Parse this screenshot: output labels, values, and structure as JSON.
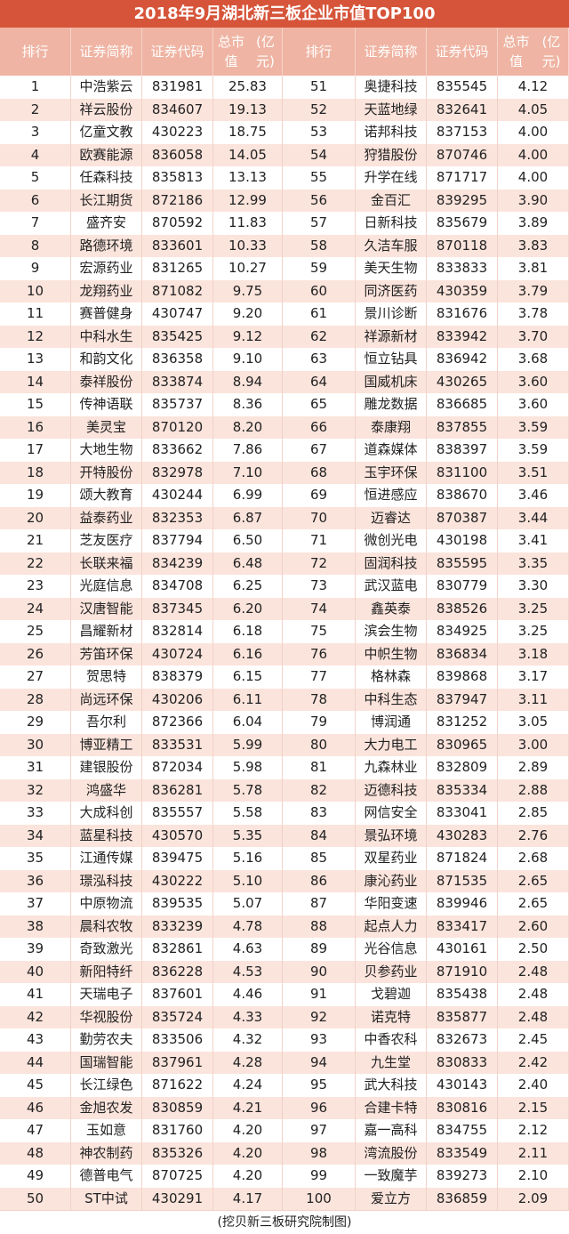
{
  "title": "2018年9月湖北新三板企业市值TOP100",
  "headers": {
    "rank": "排行",
    "name": "证券简称",
    "code": "证券代码",
    "value_line1": "总市值",
    "value_line2": "(亿元)"
  },
  "colors": {
    "title_bg": "#d6553a",
    "header_bg": "#efb4a3",
    "row_alt": "#fbe4dc"
  },
  "rows": [
    [
      "1",
      "中浩紫云",
      "831981",
      "25.83"
    ],
    [
      "2",
      "祥云股份",
      "834607",
      "19.13"
    ],
    [
      "3",
      "亿童文教",
      "430223",
      "18.75"
    ],
    [
      "4",
      "欧赛能源",
      "836058",
      "14.05"
    ],
    [
      "5",
      "任森科技",
      "835813",
      "13.13"
    ],
    [
      "6",
      "长江期货",
      "872186",
      "12.99"
    ],
    [
      "7",
      "盛齐安",
      "870592",
      "11.83"
    ],
    [
      "8",
      "路德环境",
      "833601",
      "10.33"
    ],
    [
      "9",
      "宏源药业",
      "831265",
      "10.27"
    ],
    [
      "10",
      "龙翔药业",
      "871082",
      "9.75"
    ],
    [
      "11",
      "赛普健身",
      "430747",
      "9.20"
    ],
    [
      "12",
      "中科水生",
      "835425",
      "9.12"
    ],
    [
      "13",
      "和韵文化",
      "836358",
      "9.10"
    ],
    [
      "14",
      "泰祥股份",
      "833874",
      "8.94"
    ],
    [
      "15",
      "传神语联",
      "835737",
      "8.36"
    ],
    [
      "16",
      "美灵宝",
      "870120",
      "8.20"
    ],
    [
      "17",
      "大地生物",
      "833662",
      "7.86"
    ],
    [
      "18",
      "开特股份",
      "832978",
      "7.10"
    ],
    [
      "19",
      "颂大教育",
      "430244",
      "6.99"
    ],
    [
      "20",
      "益泰药业",
      "832353",
      "6.87"
    ],
    [
      "21",
      "芝友医疗",
      "837794",
      "6.50"
    ],
    [
      "22",
      "长联来福",
      "834239",
      "6.48"
    ],
    [
      "23",
      "光庭信息",
      "834708",
      "6.25"
    ],
    [
      "24",
      "汉唐智能",
      "837345",
      "6.20"
    ],
    [
      "25",
      "昌耀新材",
      "832814",
      "6.18"
    ],
    [
      "26",
      "芳笛环保",
      "430724",
      "6.16"
    ],
    [
      "27",
      "贺思特",
      "838379",
      "6.15"
    ],
    [
      "28",
      "尚远环保",
      "430206",
      "6.11"
    ],
    [
      "29",
      "吾尔利",
      "872366",
      "6.04"
    ],
    [
      "30",
      "博亚精工",
      "833531",
      "5.99"
    ],
    [
      "31",
      "建银股份",
      "872034",
      "5.98"
    ],
    [
      "32",
      "鸿盛华",
      "836281",
      "5.78"
    ],
    [
      "33",
      "大成科创",
      "835557",
      "5.58"
    ],
    [
      "34",
      "蓝星科技",
      "430570",
      "5.35"
    ],
    [
      "35",
      "江通传媒",
      "839475",
      "5.16"
    ],
    [
      "36",
      "璟泓科技",
      "430222",
      "5.10"
    ],
    [
      "37",
      "中原物流",
      "839535",
      "5.07"
    ],
    [
      "38",
      "晨科农牧",
      "833239",
      "4.78"
    ],
    [
      "39",
      "奇致激光",
      "832861",
      "4.63"
    ],
    [
      "40",
      "新阳特纤",
      "836228",
      "4.53"
    ],
    [
      "41",
      "天瑞电子",
      "837601",
      "4.46"
    ],
    [
      "42",
      "华视股份",
      "835724",
      "4.33"
    ],
    [
      "43",
      "勤劳农夫",
      "833506",
      "4.32"
    ],
    [
      "44",
      "国瑞智能",
      "837961",
      "4.28"
    ],
    [
      "45",
      "长江绿色",
      "871622",
      "4.24"
    ],
    [
      "46",
      "金旭农发",
      "830859",
      "4.21"
    ],
    [
      "47",
      "玉如意",
      "831760",
      "4.20"
    ],
    [
      "48",
      "神农制药",
      "835326",
      "4.20"
    ],
    [
      "49",
      "德普电气",
      "870725",
      "4.20"
    ],
    [
      "50",
      "ST中试",
      "430291",
      "4.17"
    ],
    [
      "51",
      "奥捷科技",
      "835545",
      "4.12"
    ],
    [
      "52",
      "天蓝地绿",
      "832641",
      "4.05"
    ],
    [
      "53",
      "诺邦科技",
      "837153",
      "4.00"
    ],
    [
      "54",
      "狩猎股份",
      "870746",
      "4.00"
    ],
    [
      "55",
      "升学在线",
      "871717",
      "4.00"
    ],
    [
      "56",
      "金百汇",
      "839295",
      "3.90"
    ],
    [
      "57",
      "日新科技",
      "835679",
      "3.89"
    ],
    [
      "58",
      "久洁车服",
      "870118",
      "3.83"
    ],
    [
      "59",
      "美天生物",
      "833833",
      "3.81"
    ],
    [
      "60",
      "同济医药",
      "430359",
      "3.79"
    ],
    [
      "61",
      "景川诊断",
      "831676",
      "3.78"
    ],
    [
      "62",
      "祥源新材",
      "833942",
      "3.70"
    ],
    [
      "63",
      "恒立钻具",
      "836942",
      "3.68"
    ],
    [
      "64",
      "国威机床",
      "430265",
      "3.60"
    ],
    [
      "65",
      "雕龙数据",
      "836685",
      "3.60"
    ],
    [
      "66",
      "泰康翔",
      "837855",
      "3.59"
    ],
    [
      "67",
      "道森媒体",
      "838397",
      "3.59"
    ],
    [
      "68",
      "玉宇环保",
      "831100",
      "3.51"
    ],
    [
      "69",
      "恒进感应",
      "838670",
      "3.46"
    ],
    [
      "70",
      "迈睿达",
      "870387",
      "3.44"
    ],
    [
      "71",
      "微创光电",
      "430198",
      "3.41"
    ],
    [
      "72",
      "固润科技",
      "835595",
      "3.35"
    ],
    [
      "73",
      "武汉蓝电",
      "830779",
      "3.30"
    ],
    [
      "74",
      "鑫英泰",
      "838526",
      "3.25"
    ],
    [
      "75",
      "滨会生物",
      "834925",
      "3.25"
    ],
    [
      "76",
      "中帜生物",
      "836834",
      "3.18"
    ],
    [
      "77",
      "格林森",
      "839868",
      "3.17"
    ],
    [
      "78",
      "中科生态",
      "837947",
      "3.11"
    ],
    [
      "79",
      "博润通",
      "831252",
      "3.05"
    ],
    [
      "80",
      "大力电工",
      "830965",
      "3.00"
    ],
    [
      "81",
      "九森林业",
      "832809",
      "2.89"
    ],
    [
      "82",
      "迈德科技",
      "835334",
      "2.88"
    ],
    [
      "83",
      "网信安全",
      "833041",
      "2.85"
    ],
    [
      "84",
      "景弘环境",
      "430283",
      "2.76"
    ],
    [
      "85",
      "双星药业",
      "871824",
      "2.68"
    ],
    [
      "86",
      "康沁药业",
      "871535",
      "2.65"
    ],
    [
      "87",
      "华阳变速",
      "839946",
      "2.65"
    ],
    [
      "88",
      "起点人力",
      "833417",
      "2.60"
    ],
    [
      "89",
      "光谷信息",
      "430161",
      "2.50"
    ],
    [
      "90",
      "贝参药业",
      "871910",
      "2.48"
    ],
    [
      "91",
      "戈碧迦",
      "835438",
      "2.48"
    ],
    [
      "92",
      "诺克特",
      "835877",
      "2.48"
    ],
    [
      "93",
      "中香农科",
      "832673",
      "2.45"
    ],
    [
      "94",
      "九生堂",
      "830833",
      "2.42"
    ],
    [
      "95",
      "武大科技",
      "430143",
      "2.40"
    ],
    [
      "96",
      "合建卡特",
      "830816",
      "2.15"
    ],
    [
      "97",
      "嘉一高科",
      "834755",
      "2.12"
    ],
    [
      "98",
      "湾流股份",
      "833549",
      "2.11"
    ],
    [
      "99",
      "一致魔芋",
      "839273",
      "2.10"
    ],
    [
      "100",
      "爱立方",
      "836859",
      "2.09"
    ]
  ],
  "footer": "(挖贝新三板研究院制图)"
}
